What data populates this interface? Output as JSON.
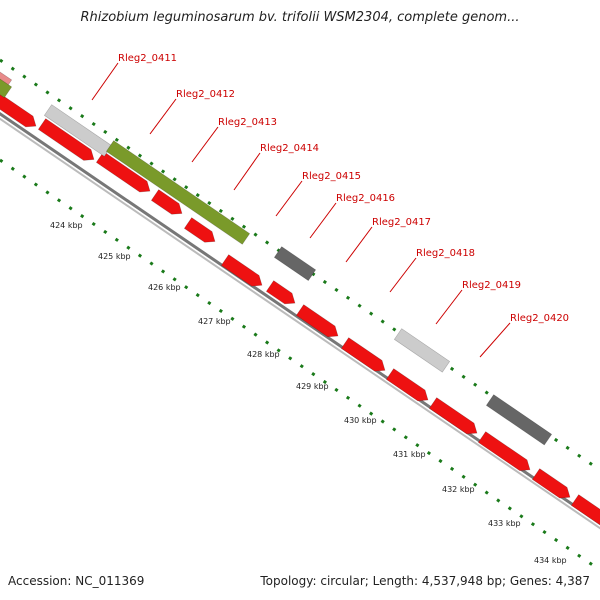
{
  "title": "Rhizobium leguminosarum bv. trifolii WSM2304, complete genom...",
  "footer": {
    "accession": "Accession: NC_011369",
    "summary": "Topology: circular; Length: 4,537,948 bp; Genes: 4,387"
  },
  "colors": {
    "cds": "#ee1111",
    "gene_light": "#cccccc",
    "gene_olive": "#7a9a2a",
    "gene_dark": "#666666",
    "backbone": "#888888",
    "ticks": "#1a7a1a",
    "labels": "#cc0000",
    "pink_fragment": "#e88a8a"
  },
  "gene_labels": [
    "Rleg2_0411",
    "Rleg2_0412",
    "Rleg2_0413",
    "Rleg2_0414",
    "Rleg2_0415",
    "Rleg2_0416",
    "Rleg2_0417",
    "Rleg2_0418",
    "Rleg2_0419",
    "Rleg2_0420"
  ],
  "kbp_labels": [
    "424 kbp",
    "425 kbp",
    "426 kbp",
    "427 kbp",
    "428 kbp",
    "429 kbp",
    "430 kbp",
    "431 kbp",
    "432 kbp",
    "433 kbp",
    "434 kbp"
  ]
}
